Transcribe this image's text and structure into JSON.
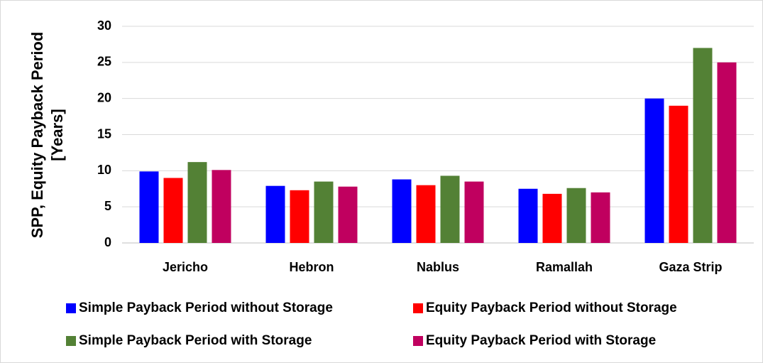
{
  "chart_data": {
    "type": "bar",
    "y_label": [
      "SPP, Equity Payback Period",
      "[Years]"
    ],
    "categories": [
      "Jericho",
      "Hebron",
      "Nablus",
      "Ramallah",
      "Gaza Strip"
    ],
    "series": [
      {
        "name": "Simple Payback Period without Storage",
        "color": "#0000ff",
        "values": [
          9.9,
          7.9,
          8.8,
          7.5,
          20
        ]
      },
      {
        "name": "Equity Payback Period without Storage",
        "color": "#ff0000",
        "values": [
          9.0,
          7.3,
          8.0,
          6.8,
          19
        ]
      },
      {
        "name": "Simple Payback Period with Storage",
        "color": "#538135",
        "values": [
          11.2,
          8.5,
          9.3,
          7.6,
          27
        ]
      },
      {
        "name": "Equity Payback Period with Storage",
        "color": "#c0005f",
        "values": [
          10.1,
          7.8,
          8.5,
          7.0,
          25
        ]
      }
    ],
    "ylim": [
      0,
      30
    ],
    "yticks": [
      0,
      5,
      10,
      15,
      20,
      25,
      30
    ],
    "grid": true,
    "legend": "bottom"
  }
}
